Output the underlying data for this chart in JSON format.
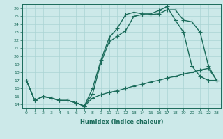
{
  "title": "",
  "xlabel": "Humidex (Indice chaleur)",
  "bg_color": "#cce9e9",
  "line_color": "#1a6b5a",
  "grid_color": "#aad4d4",
  "xlim": [
    -0.5,
    23.5
  ],
  "ylim": [
    13.5,
    26.5
  ],
  "xticks": [
    0,
    1,
    2,
    3,
    4,
    5,
    6,
    7,
    8,
    9,
    10,
    11,
    12,
    13,
    14,
    15,
    16,
    17,
    18,
    19,
    20,
    21,
    22,
    23
  ],
  "yticks": [
    14,
    15,
    16,
    17,
    18,
    19,
    20,
    21,
    22,
    23,
    24,
    25,
    26
  ],
  "line1_x": [
    0,
    1,
    2,
    3,
    4,
    5,
    6,
    7,
    8,
    9,
    10,
    11,
    12,
    13,
    14,
    15,
    16,
    17,
    18,
    19,
    20,
    21,
    22,
    23
  ],
  "line1_y": [
    17,
    14.5,
    15,
    14.8,
    14.5,
    14.5,
    14.2,
    13.8,
    15.3,
    19.2,
    21.8,
    22.5,
    23.2,
    25.0,
    25.2,
    25.2,
    25.3,
    25.8,
    25.8,
    24.5,
    24.3,
    23.0,
    18.8,
    17.0
  ],
  "line2_x": [
    0,
    1,
    2,
    3,
    4,
    5,
    6,
    7,
    8,
    9,
    10,
    11,
    12,
    13,
    14,
    15,
    16,
    17,
    18,
    19,
    20,
    21,
    22,
    23
  ],
  "line2_y": [
    17,
    14.5,
    15,
    14.8,
    14.5,
    14.5,
    14.2,
    13.8,
    14.8,
    15.2,
    15.5,
    15.7,
    16.0,
    16.3,
    16.5,
    16.8,
    17.0,
    17.3,
    17.5,
    17.8,
    18.0,
    18.3,
    18.5,
    17.0
  ],
  "line3_x": [
    0,
    1,
    2,
    3,
    4,
    5,
    6,
    7,
    8,
    9,
    10,
    11,
    12,
    13,
    14,
    15,
    16,
    17,
    18,
    19,
    20,
    21,
    22,
    23
  ],
  "line3_y": [
    17,
    14.5,
    15,
    14.8,
    14.5,
    14.5,
    14.2,
    13.8,
    16.0,
    19.5,
    22.3,
    23.5,
    25.2,
    25.5,
    25.3,
    25.3,
    25.7,
    26.2,
    24.5,
    23.0,
    18.8,
    17.5,
    17.0,
    17.0
  ],
  "marker": "+",
  "markersize": 4,
  "linewidth": 1.0
}
